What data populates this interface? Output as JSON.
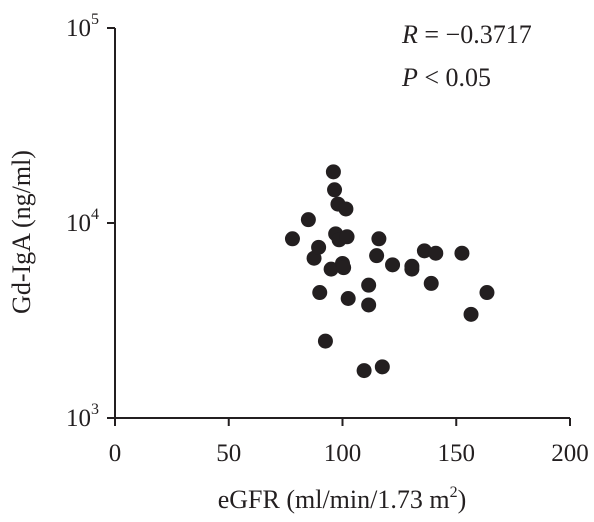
{
  "chart_data": {
    "type": "scatter",
    "xlabel": "eGFR (ml/min/1.73 m",
    "xlabel_sup": "2",
    "xlabel_close": ")",
    "ylabel": "Gd-IgA (ng/ml)",
    "xlim": [
      0,
      200
    ],
    "ylim": [
      1000,
      100000
    ],
    "yscale": "log",
    "x_ticks": [
      "0",
      "50",
      "100",
      "150",
      "200"
    ],
    "y_ticks": [
      {
        "base": "10",
        "exp": "3"
      },
      {
        "base": "10",
        "exp": "4"
      },
      {
        "base": "10",
        "exp": "5"
      }
    ],
    "grid": false,
    "annotations": {
      "r_var": "R",
      "r_value": " = −0.3717",
      "p_var": "P",
      "p_value": " < 0.05"
    },
    "series": [
      {
        "points": [
          {
            "x": 78,
            "y": 8300
          },
          {
            "x": 85,
            "y": 10400
          },
          {
            "x": 87.5,
            "y": 6600
          },
          {
            "x": 89.5,
            "y": 7500
          },
          {
            "x": 90,
            "y": 4400
          },
          {
            "x": 92.5,
            "y": 2480
          },
          {
            "x": 95,
            "y": 5800
          },
          {
            "x": 96,
            "y": 18300
          },
          {
            "x": 96.5,
            "y": 14800
          },
          {
            "x": 97,
            "y": 8800
          },
          {
            "x": 98,
            "y": 12500
          },
          {
            "x": 98.5,
            "y": 8200
          },
          {
            "x": 100,
            "y": 6200
          },
          {
            "x": 100.5,
            "y": 5900
          },
          {
            "x": 101.5,
            "y": 11800
          },
          {
            "x": 102,
            "y": 8500
          },
          {
            "x": 102.5,
            "y": 4100
          },
          {
            "x": 109.5,
            "y": 1750
          },
          {
            "x": 111.5,
            "y": 4800
          },
          {
            "x": 111.5,
            "y": 3800
          },
          {
            "x": 115,
            "y": 6800
          },
          {
            "x": 116,
            "y": 8300
          },
          {
            "x": 117.5,
            "y": 1830
          },
          {
            "x": 122,
            "y": 6100
          },
          {
            "x": 130.5,
            "y": 5800
          },
          {
            "x": 130.5,
            "y": 6000
          },
          {
            "x": 136,
            "y": 7200
          },
          {
            "x": 139,
            "y": 4900
          },
          {
            "x": 141,
            "y": 7000
          },
          {
            "x": 152.5,
            "y": 7000
          },
          {
            "x": 156.5,
            "y": 3400
          },
          {
            "x": 163.5,
            "y": 4400
          }
        ]
      }
    ]
  }
}
